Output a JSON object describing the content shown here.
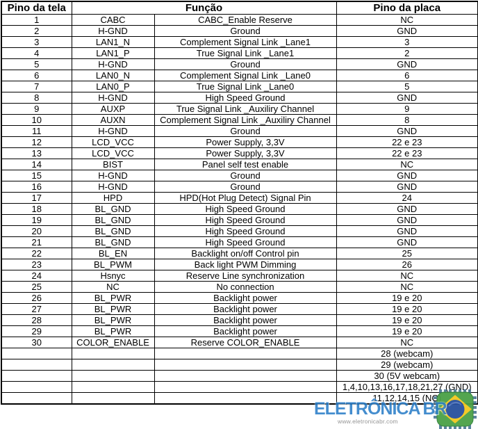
{
  "table": {
    "header": {
      "col_tela": "Pino da tela",
      "col_funcao": "Função",
      "col_placa": "Pino da placa"
    },
    "rows": [
      {
        "tela": "1",
        "sinal": "CABC",
        "funcao": "CABC_Enable Reserve",
        "placa": "NC"
      },
      {
        "tela": "2",
        "sinal": "H-GND",
        "funcao": "Ground",
        "placa": "GND"
      },
      {
        "tela": "3",
        "sinal": "LAN1_N",
        "funcao": "Complement Signal Link _Lane1",
        "placa": "3"
      },
      {
        "tela": "4",
        "sinal": "LAN1_P",
        "funcao": "True Signal Link _Lane1",
        "placa": "2"
      },
      {
        "tela": "5",
        "sinal": "H-GND",
        "funcao": "Ground",
        "placa": "GND"
      },
      {
        "tela": "6",
        "sinal": "LAN0_N",
        "funcao": "Complement Signal Link _Lane0",
        "placa": "6"
      },
      {
        "tela": "7",
        "sinal": "LAN0_P",
        "funcao": "True Signal Link _Lane0",
        "placa": "5"
      },
      {
        "tela": "8",
        "sinal": "H-GND",
        "funcao": "High Speed Ground",
        "placa": "GND"
      },
      {
        "tela": "9",
        "sinal": "AUXP",
        "funcao": "True Signal Link _Auxiliry Channel",
        "placa": "9"
      },
      {
        "tela": "10",
        "sinal": "AUXN",
        "funcao": "Complement Signal Link _Auxiliry Channel",
        "placa": "8"
      },
      {
        "tela": "11",
        "sinal": "H-GND",
        "funcao": "Ground",
        "placa": "GND"
      },
      {
        "tela": "12",
        "sinal": "LCD_VCC",
        "funcao": "Power Supply, 3,3V",
        "placa": "22 e 23"
      },
      {
        "tela": "13",
        "sinal": "LCD_VCC",
        "funcao": "Power Supply, 3,3V",
        "placa": "22 e 23"
      },
      {
        "tela": "14",
        "sinal": "BIST",
        "funcao": "Panel self test enable",
        "placa": "NC"
      },
      {
        "tela": "15",
        "sinal": "H-GND",
        "funcao": "Ground",
        "placa": "GND"
      },
      {
        "tela": "16",
        "sinal": "H-GND",
        "funcao": "Ground",
        "placa": "GND"
      },
      {
        "tela": "17",
        "sinal": "HPD",
        "funcao": "HPD(Hot Plug Detect) Signal Pin",
        "placa": "24"
      },
      {
        "tela": "18",
        "sinal": "BL_GND",
        "funcao": "High Speed Ground",
        "placa": "GND"
      },
      {
        "tela": "19",
        "sinal": "BL_GND",
        "funcao": "High Speed Ground",
        "placa": "GND"
      },
      {
        "tela": "20",
        "sinal": "BL_GND",
        "funcao": "High Speed Ground",
        "placa": "GND"
      },
      {
        "tela": "21",
        "sinal": "BL_GND",
        "funcao": "High Speed Ground",
        "placa": "GND"
      },
      {
        "tela": "22",
        "sinal": "BL_EN",
        "funcao": "Backlight on/off Control pin",
        "placa": "25"
      },
      {
        "tela": "23",
        "sinal": "BL_PWM",
        "funcao": "Back light PWM Dimming",
        "placa": "26"
      },
      {
        "tela": "24",
        "sinal": "Hsnyc",
        "funcao": "Reserve Line synchronization",
        "placa": "NC"
      },
      {
        "tela": "25",
        "sinal": "NC",
        "funcao": "No connection",
        "placa": "NC"
      },
      {
        "tela": "26",
        "sinal": "BL_PWR",
        "funcao": "Backlight power",
        "placa": "19 e 20"
      },
      {
        "tela": "27",
        "sinal": "BL_PWR",
        "funcao": "Backlight power",
        "placa": "19 e 20"
      },
      {
        "tela": "28",
        "sinal": "BL_PWR",
        "funcao": "Backlight power",
        "placa": "19 e 20"
      },
      {
        "tela": "29",
        "sinal": "BL_PWR",
        "funcao": "Backlight power",
        "placa": "19 e 20"
      },
      {
        "tela": "30",
        "sinal": "COLOR_ENABLE",
        "funcao": "Reserve COLOR_ENABLE",
        "placa": "NC"
      },
      {
        "tela": "",
        "sinal": "",
        "funcao": "",
        "placa": "28 (webcam)"
      },
      {
        "tela": "",
        "sinal": "",
        "funcao": "",
        "placa": "29 (webcam)"
      },
      {
        "tela": "",
        "sinal": "",
        "funcao": "",
        "placa": "30 (5V webcam)"
      },
      {
        "tela": "",
        "sinal": "",
        "funcao": "",
        "placa": "1,4,10,13,16,17,18,21,27 (GND)"
      },
      {
        "tela": "",
        "sinal": "",
        "funcao": "",
        "placa": "11,12,14,15 (NC)"
      }
    ]
  },
  "watermark": {
    "brand": "ELETRÔNICA",
    "brand_suffix": "BR",
    "url": "www.eletronicabr.com",
    "brand_color": "#2b7ec8",
    "logo_green": "#4aa147",
    "logo_yellow": "#f2c81e",
    "logo_blue": "#27509e",
    "logo_pin_color": "#3f6f8e"
  }
}
